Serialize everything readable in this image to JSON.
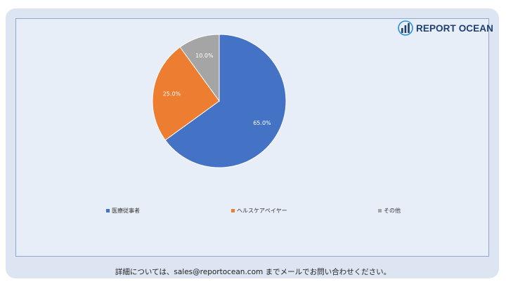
{
  "brand": {
    "name": "REPORT OCEAN",
    "logo_icon": "bar-chart-globe-icon",
    "color": "#1c3f73"
  },
  "footer": {
    "text": "詳細については、sales@reportocean.com までメールでお問い合わせください。"
  },
  "colors": {
    "frame": "#dde4f2",
    "panel": "#e8eef8",
    "panel_border": "#8fa6cf"
  },
  "chart_data": {
    "type": "pie",
    "title": "",
    "categories": [
      "医療従事者",
      "ヘルスケアペイヤー",
      "その他"
    ],
    "values": [
      65.0,
      25.0,
      10.0
    ],
    "data_labels": [
      "65.0%",
      "25.0%",
      "10.0%"
    ],
    "colors": [
      "#4472c4",
      "#ed7d31",
      "#a5a5a5"
    ],
    "start_angle_deg": 0,
    "direction": "clockwise",
    "legend_position": "bottom"
  }
}
